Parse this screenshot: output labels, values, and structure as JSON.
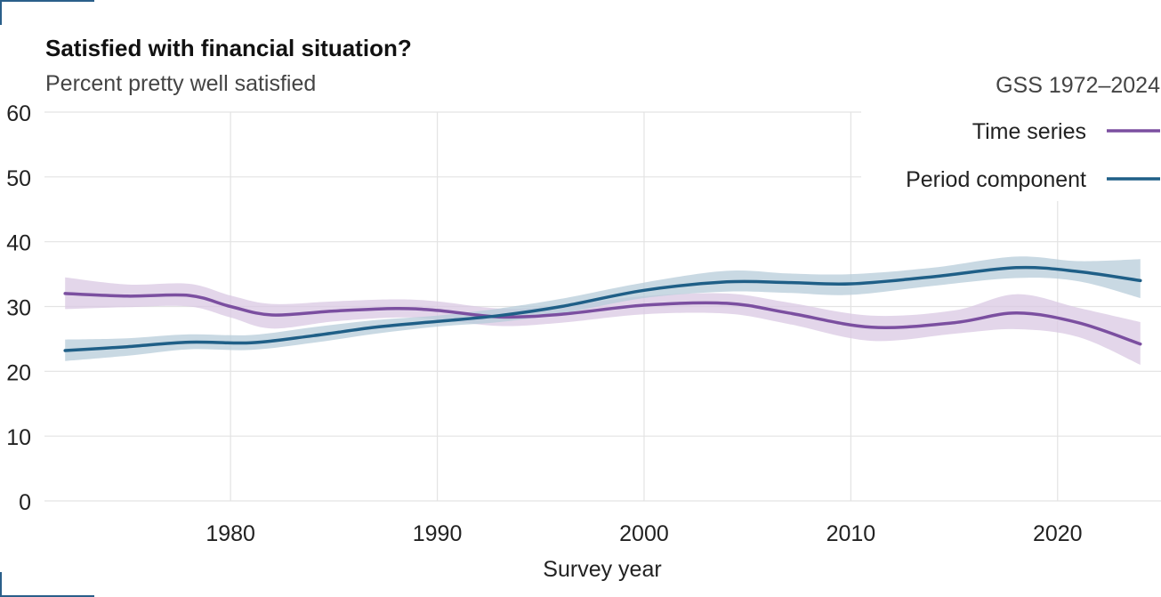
{
  "chart_data": {
    "type": "line",
    "title": "Satisfied with financial situation?",
    "subtitle": "Percent pretty well satisfied",
    "source_note": "GSS 1972–2024",
    "xlabel": "Survey year",
    "ylabel": "",
    "xlim": [
      1971,
      2025
    ],
    "ylim": [
      0,
      60
    ],
    "x_ticks": [
      "1980",
      "1990",
      "2000",
      "2010",
      "2020"
    ],
    "y_ticks": [
      "0",
      "10",
      "20",
      "30",
      "40",
      "50",
      "60"
    ],
    "grid": true,
    "legend_position": "top-right",
    "series": [
      {
        "name": "Time series",
        "color": "#7b4fa0",
        "band_color": "#d9c8e3",
        "x": [
          1972,
          1975,
          1978,
          1980,
          1982,
          1985,
          1988,
          1990,
          1993,
          1996,
          2000,
          2004,
          2007,
          2011,
          2015,
          2018,
          2021,
          2024
        ],
        "y": [
          32.0,
          31.6,
          31.7,
          30.0,
          28.7,
          29.3,
          29.7,
          29.4,
          28.4,
          28.8,
          30.2,
          30.5,
          29.0,
          26.8,
          27.5,
          29.0,
          27.5,
          24.2
        ],
        "lower": [
          29.6,
          29.9,
          30.0,
          28.3,
          26.6,
          27.7,
          28.3,
          28.0,
          27.0,
          27.5,
          28.8,
          28.9,
          27.3,
          24.7,
          25.8,
          26.5,
          25.3,
          21.0
        ],
        "upper": [
          34.5,
          33.4,
          33.5,
          31.7,
          30.4,
          30.8,
          31.1,
          30.8,
          29.7,
          30.1,
          31.6,
          32.0,
          30.6,
          28.6,
          29.4,
          31.9,
          29.8,
          27.6
        ]
      },
      {
        "name": "Period component",
        "color": "#1f5f87",
        "band_color": "#b7ccd9",
        "x": [
          1972,
          1975,
          1978,
          1981,
          1984,
          1987,
          1990,
          1993,
          1996,
          2000,
          2004,
          2007,
          2010,
          2014,
          2018,
          2021,
          2024
        ],
        "y": [
          23.2,
          23.8,
          24.5,
          24.4,
          25.5,
          26.8,
          27.7,
          28.6,
          30.0,
          32.5,
          33.8,
          33.7,
          33.5,
          34.6,
          36.0,
          35.4,
          34.0
        ],
        "lower": [
          21.6,
          22.4,
          23.4,
          23.3,
          24.4,
          25.8,
          26.9,
          27.6,
          28.9,
          31.3,
          32.3,
          32.1,
          31.8,
          33.2,
          34.4,
          33.9,
          31.3
        ],
        "upper": [
          24.9,
          25.1,
          25.7,
          25.6,
          26.8,
          27.9,
          28.6,
          29.7,
          31.2,
          33.7,
          35.5,
          35.1,
          35.0,
          36.0,
          37.7,
          37.0,
          37.3
        ]
      }
    ]
  }
}
